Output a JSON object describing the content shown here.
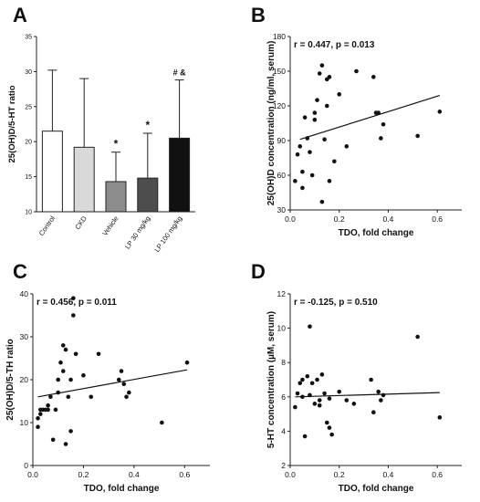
{
  "chart_data": [
    {
      "panel": "A",
      "type": "bar",
      "ylabel": "25(OH)D/5-HT ratio",
      "ylim": [
        10,
        35
      ],
      "yticks": [
        10,
        15,
        20,
        25,
        30,
        35
      ],
      "categories": [
        "Control",
        "CKD",
        "Vehicle",
        "LP 30 mg/kg",
        "LP 100 mg/kg"
      ],
      "values": [
        21.5,
        19.2,
        14.3,
        14.8,
        20.5
      ],
      "error_upper": [
        30.2,
        29.0,
        18.5,
        21.2,
        28.8
      ],
      "bar_colors": [
        "#ffffff",
        "#d9d9d9",
        "#8c8c8c",
        "#4d4d4d",
        "#111111"
      ],
      "annotations": [
        "",
        "",
        "*",
        "*",
        "# &"
      ]
    },
    {
      "panel": "B",
      "type": "scatter",
      "annotation": "r = 0.447, p = 0.013",
      "xlabel": "TDO, fold change",
      "ylabel": "25(OH)D concentration (ng/ml, serum)",
      "xlim": [
        0.0,
        0.7
      ],
      "ylim": [
        30,
        180
      ],
      "xticks": [
        "0.0",
        "0.2",
        "0.4",
        "0.6"
      ],
      "yticks": [
        30,
        60,
        90,
        120,
        150,
        180
      ],
      "fit": [
        [
          0.04,
          91
        ],
        [
          0.61,
          129
        ]
      ],
      "points": [
        [
          0.02,
          55
        ],
        [
          0.03,
          78
        ],
        [
          0.04,
          85
        ],
        [
          0.05,
          49
        ],
        [
          0.05,
          63
        ],
        [
          0.06,
          110
        ],
        [
          0.07,
          92
        ],
        [
          0.08,
          80
        ],
        [
          0.09,
          60
        ],
        [
          0.1,
          114
        ],
        [
          0.1,
          108
        ],
        [
          0.11,
          125
        ],
        [
          0.12,
          148
        ],
        [
          0.13,
          155
        ],
        [
          0.13,
          37
        ],
        [
          0.14,
          91
        ],
        [
          0.15,
          120
        ],
        [
          0.15,
          143
        ],
        [
          0.16,
          145
        ],
        [
          0.16,
          55
        ],
        [
          0.18,
          72
        ],
        [
          0.2,
          130
        ],
        [
          0.23,
          85
        ],
        [
          0.27,
          150
        ],
        [
          0.34,
          145
        ],
        [
          0.35,
          114
        ],
        [
          0.36,
          114
        ],
        [
          0.37,
          92
        ],
        [
          0.38,
          104
        ],
        [
          0.52,
          94
        ],
        [
          0.61,
          115
        ]
      ]
    },
    {
      "panel": "C",
      "type": "scatter",
      "annotation": "r = 0.456, p = 0.011",
      "xlabel": "TDO, fold change",
      "ylabel": "25(OH)D/5-TH ratio",
      "xlim": [
        0.0,
        0.7
      ],
      "ylim": [
        0,
        40
      ],
      "xticks": [
        "0.0",
        "0.2",
        "0.4",
        "0.6"
      ],
      "yticks": [
        0,
        10,
        20,
        30,
        40
      ],
      "fit": [
        [
          0.02,
          16
        ],
        [
          0.61,
          22.3
        ]
      ],
      "points": [
        [
          0.02,
          9
        ],
        [
          0.02,
          11
        ],
        [
          0.03,
          13
        ],
        [
          0.03,
          12
        ],
        [
          0.04,
          13
        ],
        [
          0.05,
          13
        ],
        [
          0.06,
          13
        ],
        [
          0.06,
          14
        ],
        [
          0.07,
          16
        ],
        [
          0.08,
          6
        ],
        [
          0.09,
          13
        ],
        [
          0.1,
          20
        ],
        [
          0.1,
          17
        ],
        [
          0.11,
          24
        ],
        [
          0.12,
          28
        ],
        [
          0.12,
          22
        ],
        [
          0.13,
          5
        ],
        [
          0.13,
          27
        ],
        [
          0.14,
          16
        ],
        [
          0.15,
          8
        ],
        [
          0.15,
          20
        ],
        [
          0.16,
          35
        ],
        [
          0.16,
          39
        ],
        [
          0.17,
          26
        ],
        [
          0.2,
          21
        ],
        [
          0.23,
          16
        ],
        [
          0.26,
          26
        ],
        [
          0.34,
          20
        ],
        [
          0.35,
          22
        ],
        [
          0.36,
          19
        ],
        [
          0.37,
          16
        ],
        [
          0.38,
          17
        ],
        [
          0.51,
          10
        ],
        [
          0.61,
          24
        ]
      ]
    },
    {
      "panel": "D",
      "type": "scatter",
      "annotation": "r = -0.125, p = 0.510",
      "xlabel": "TDO, fold change",
      "ylabel": "5-HT concentration (µM, serum)",
      "xlim": [
        0.0,
        0.7
      ],
      "ylim": [
        2,
        12
      ],
      "xticks": [
        "0.0",
        "0.2",
        "0.4",
        "0.6"
      ],
      "yticks": [
        2,
        4,
        6,
        8,
        10,
        12
      ],
      "fit": [
        [
          0.02,
          6.0
        ],
        [
          0.61,
          6.25
        ]
      ],
      "points": [
        [
          0.02,
          5.4
        ],
        [
          0.03,
          6.2
        ],
        [
          0.04,
          6.8
        ],
        [
          0.05,
          7.0
        ],
        [
          0.05,
          6.0
        ],
        [
          0.06,
          3.7
        ],
        [
          0.07,
          7.2
        ],
        [
          0.08,
          10.1
        ],
        [
          0.08,
          6.1
        ],
        [
          0.09,
          6.8
        ],
        [
          0.1,
          5.6
        ],
        [
          0.11,
          7.0
        ],
        [
          0.12,
          5.8
        ],
        [
          0.12,
          5.5
        ],
        [
          0.13,
          7.3
        ],
        [
          0.14,
          6.2
        ],
        [
          0.15,
          4.5
        ],
        [
          0.16,
          5.9
        ],
        [
          0.16,
          4.2
        ],
        [
          0.17,
          3.8
        ],
        [
          0.2,
          6.3
        ],
        [
          0.23,
          5.8
        ],
        [
          0.26,
          5.6
        ],
        [
          0.33,
          7.0
        ],
        [
          0.34,
          5.1
        ],
        [
          0.36,
          6.3
        ],
        [
          0.37,
          5.8
        ],
        [
          0.38,
          6.1
        ],
        [
          0.52,
          9.5
        ],
        [
          0.61,
          4.8
        ]
      ]
    }
  ],
  "panel_letters": [
    "A",
    "B",
    "C",
    "D"
  ]
}
